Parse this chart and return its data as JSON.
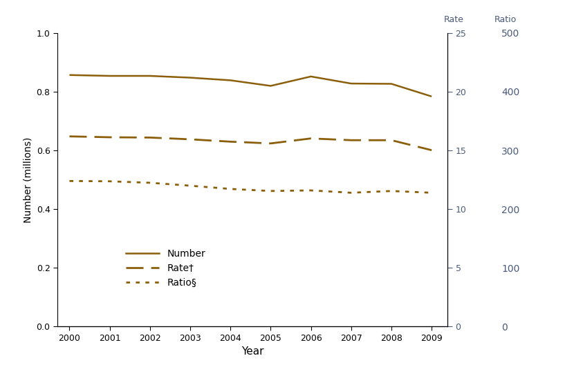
{
  "years": [
    2000,
    2001,
    2002,
    2003,
    2004,
    2005,
    2006,
    2007,
    2008,
    2009
  ],
  "number": [
    0.857,
    0.854,
    0.854,
    0.848,
    0.839,
    0.82,
    0.852,
    0.828,
    0.827,
    0.784
  ],
  "rate_left": [
    0.648,
    0.645,
    0.644,
    0.638,
    0.63,
    0.624,
    0.641,
    0.635,
    0.635,
    0.601
  ],
  "ratio_left": [
    0.496,
    0.495,
    0.49,
    0.48,
    0.469,
    0.462,
    0.464,
    0.456,
    0.462,
    0.456
  ],
  "line_color": "#8B5E0A",
  "axis_label_color": "#4a5a7a",
  "left_yticks": [
    0.0,
    0.2,
    0.4,
    0.6,
    0.8,
    1.0
  ],
  "left_ylabels": [
    "0.0",
    "0.2",
    "0.4",
    "0.6",
    "0.8",
    "1.0"
  ],
  "rate_yticks": [
    0,
    5,
    10,
    15,
    20,
    25
  ],
  "rate_ylabels": [
    "0",
    "5",
    "10",
    "15",
    "20",
    "25"
  ],
  "ratio_yticks": [
    0,
    100,
    200,
    300,
    400,
    500
  ],
  "ratio_ylabels": [
    "0",
    "100",
    "200",
    "300",
    "400",
    "500"
  ],
  "ylabel_left": "Number (millions)",
  "xlabel": "Year",
  "label_rate": "Rate",
  "label_ratio": "Ratio",
  "legend_number": "Number",
  "legend_rate": "Rate†",
  "legend_ratio": "Ratio§",
  "xlim": [
    1999.7,
    2009.4
  ],
  "ylim_left": [
    0.0,
    1.0
  ],
  "ylim_rate": [
    0,
    25
  ],
  "ylim_ratio": [
    0,
    500
  ]
}
